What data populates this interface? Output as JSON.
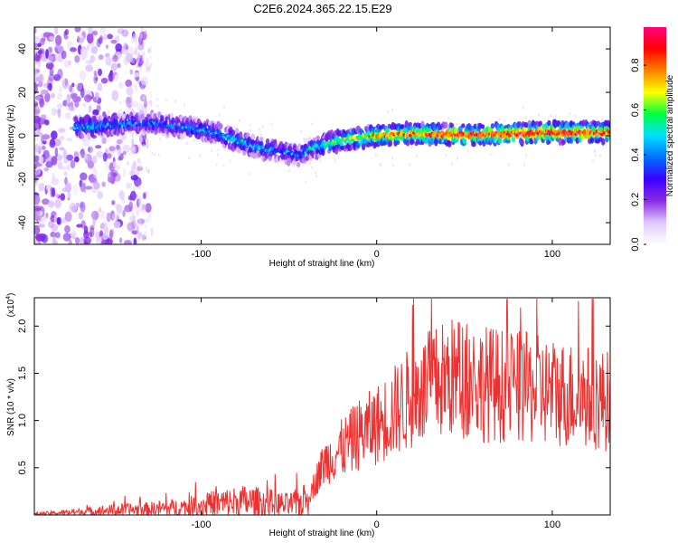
{
  "title": "C2E6.2024.365.22.15.E29",
  "chart_data": [
    {
      "type": "heatmap",
      "name": "spectrogram",
      "xlabel": "Height of straight line (km)",
      "ylabel": "Frequency (Hz)",
      "xlim": [
        -195,
        133
      ],
      "ylim": [
        -50,
        50
      ],
      "xticks": [
        -100,
        0,
        100
      ],
      "xtick_labels": [
        "-100",
        "0",
        "100"
      ],
      "yticks": [
        -40,
        -20,
        0,
        20,
        40
      ],
      "ytick_labels": [
        "-40",
        "-20",
        "0",
        "20",
        "40"
      ],
      "colorbar": {
        "label": "Normalized spectral amplitude",
        "range": [
          0,
          0.97
        ],
        "ticks": [
          0,
          0.2,
          0.4,
          0.6,
          0.8
        ],
        "tick_labels": [
          "0.0",
          "0.2",
          "0.4",
          "0.6",
          "0.8"
        ],
        "colormap": [
          "#ffffff",
          "#e0c8ff",
          "#8a2be2",
          "#3a00ff",
          "#0070ff",
          "#00e0ff",
          "#00ff40",
          "#ffff00",
          "#ff8000",
          "#ff0000",
          "#ff0080"
        ]
      },
      "ridge": {
        "x": [
          -170,
          -150,
          -130,
          -110,
          -95,
          -80,
          -65,
          -55,
          -45,
          -38,
          -25,
          -10,
          0,
          20,
          40,
          60,
          80,
          100,
          120,
          133
        ],
        "frequency": [
          4,
          5,
          6,
          4,
          2,
          -2,
          -6,
          -7,
          -9,
          -6,
          -3,
          -1,
          0,
          1,
          0.5,
          0.5,
          1,
          1.5,
          1.5,
          1.5
        ],
        "amplitude": [
          0.45,
          0.4,
          0.35,
          0.4,
          0.4,
          0.45,
          0.4,
          0.35,
          0.35,
          0.45,
          0.55,
          0.65,
          0.75,
          0.8,
          0.85,
          0.85,
          0.85,
          0.9,
          0.85,
          0.8
        ]
      }
    },
    {
      "type": "line",
      "name": "snr",
      "xlabel": "Height of straight line (km)",
      "ylabel": "SNR (10 * v/v)",
      "y_scale_note": "(x10",
      "y_scale_exp": "4",
      "xlim": [
        -195,
        133
      ],
      "ylim": [
        0,
        2.3
      ],
      "xticks": [
        -100,
        0,
        100
      ],
      "xtick_labels": [
        "-100",
        "0",
        "100"
      ],
      "yticks": [
        0.5,
        1.0,
        1.5,
        2.0
      ],
      "ytick_labels": [
        "0.5",
        "1.0",
        "1.5",
        "2.0"
      ],
      "color": "#ee3030",
      "envelope": {
        "x": [
          -195,
          -170,
          -150,
          -130,
          -110,
          -90,
          -75,
          -60,
          -50,
          -40,
          -35,
          -30,
          -20,
          -10,
          0,
          10,
          20,
          30,
          40,
          50,
          60,
          80,
          100,
          120,
          133
        ],
        "y": [
          0.01,
          0.03,
          0.05,
          0.06,
          0.08,
          0.12,
          0.14,
          0.12,
          0.1,
          0.15,
          0.35,
          0.55,
          0.7,
          0.85,
          0.95,
          1.1,
          1.25,
          1.35,
          1.45,
          1.45,
          1.4,
          1.35,
          1.3,
          1.25,
          1.2
        ]
      }
    }
  ]
}
